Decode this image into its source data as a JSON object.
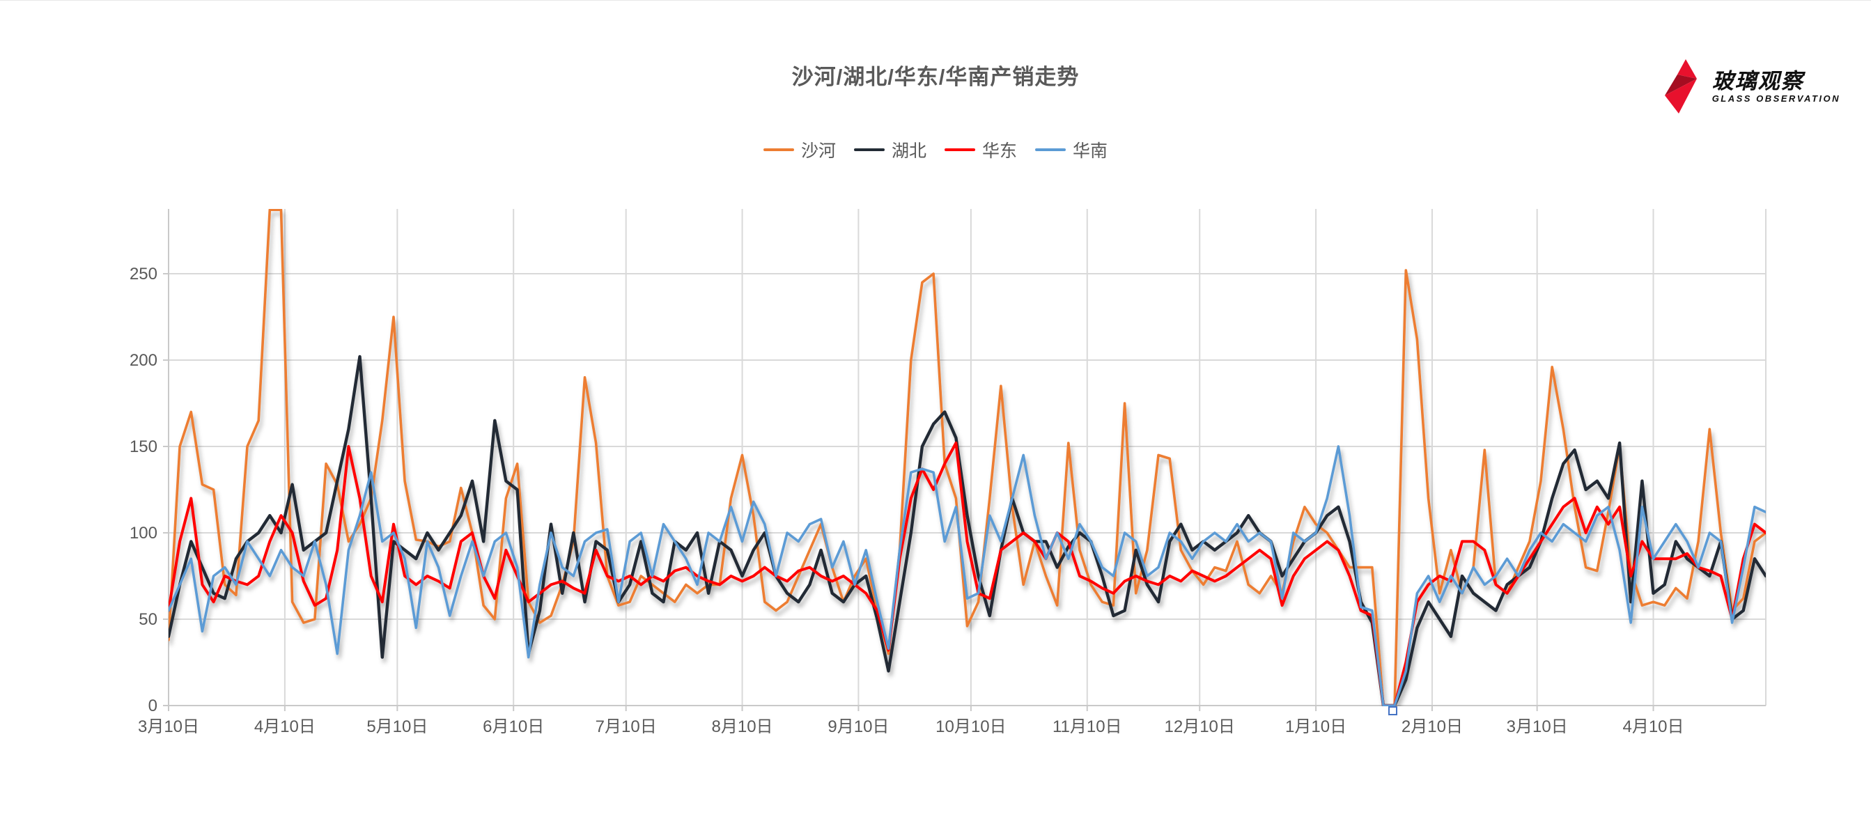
{
  "title": "沙河/湖北/华东/华南产销走势",
  "logo": {
    "name_cn": "玻璃观察",
    "name_en": "GLASS OBSERVATION",
    "star_color": "#e8112d",
    "star_dark": "#a50d21"
  },
  "axis_marker": {
    "color": "#4472c4"
  },
  "colors": {
    "grid": "#d9d9d9",
    "axis": "#c9c9c9",
    "tick_text": "#595959",
    "title_text": "#595959"
  },
  "chart_data": {
    "type": "line",
    "title": "沙河/湖北/华东/华南产销走势",
    "xlabel": "",
    "ylabel": "",
    "ylim": [
      0,
      287
    ],
    "yticks": [
      0,
      50,
      100,
      150,
      200,
      250
    ],
    "grid": true,
    "legend_position": "top",
    "x_unit": "days since first tick (3月10日), values sampled every 3 days",
    "x_step_days": 3,
    "x_total_days": 426,
    "x_tick_days": [
      0,
      31,
      61,
      92,
      122,
      153,
      184,
      214,
      245,
      275,
      306,
      337,
      365,
      396
    ],
    "x_tick_labels": [
      "3月10日",
      "4月10日",
      "5月10日",
      "6月10日",
      "7月10日",
      "8月10日",
      "9月10日",
      "10月10日",
      "11月10日",
      "12月10日",
      "1月10日",
      "2月10日",
      "3月10日",
      "4月10日"
    ],
    "series": [
      {
        "name": "沙河",
        "color": "#ED7D31",
        "width": 3.6,
        "values": [
          38,
          150,
          170,
          128,
          125,
          70,
          64,
          150,
          165,
          287,
          288,
          60,
          48,
          50,
          140,
          128,
          95,
          105,
          120,
          165,
          225,
          130,
          96,
          95,
          92,
          95,
          126,
          100,
          58,
          50,
          120,
          140,
          60,
          48,
          52,
          70,
          95,
          190,
          152,
          75,
          58,
          60,
          75,
          70,
          65,
          60,
          70,
          65,
          70,
          70,
          120,
          145,
          110,
          60,
          55,
          60,
          75,
          90,
          105,
          80,
          60,
          75,
          85,
          55,
          30,
          90,
          200,
          245,
          250,
          140,
          120,
          46,
          60,
          120,
          185,
          115,
          70,
          95,
          75,
          58,
          152,
          90,
          70,
          60,
          58,
          175,
          65,
          90,
          145,
          143,
          90,
          78,
          70,
          80,
          78,
          95,
          70,
          65,
          75,
          65,
          95,
          115,
          105,
          100,
          90,
          80,
          80,
          80,
          0,
          0,
          252,
          212,
          120,
          65,
          90,
          65,
          80,
          148,
          70,
          65,
          80,
          95,
          130,
          196,
          160,
          115,
          80,
          78,
          112,
          150,
          78,
          58,
          60,
          58,
          68,
          62,
          95,
          160,
          100,
          55,
          62,
          95,
          100
        ]
      },
      {
        "name": "湖北",
        "color": "#222B35",
        "width": 4.4,
        "values": [
          40,
          70,
          95,
          80,
          65,
          62,
          85,
          95,
          100,
          110,
          100,
          128,
          90,
          95,
          100,
          130,
          160,
          202,
          120,
          28,
          95,
          90,
          85,
          100,
          90,
          100,
          110,
          130,
          95,
          165,
          130,
          125,
          30,
          55,
          105,
          65,
          100,
          60,
          95,
          90,
          60,
          70,
          95,
          65,
          60,
          95,
          90,
          100,
          65,
          95,
          90,
          75,
          90,
          100,
          75,
          65,
          60,
          70,
          90,
          65,
          60,
          70,
          75,
          50,
          20,
          60,
          100,
          150,
          163,
          170,
          155,
          110,
          75,
          52,
          90,
          120,
          100,
          95,
          95,
          80,
          92,
          100,
          95,
          75,
          52,
          55,
          90,
          70,
          60,
          95,
          105,
          90,
          95,
          90,
          95,
          100,
          110,
          100,
          95,
          75,
          85,
          95,
          100,
          110,
          115,
          95,
          60,
          48,
          0,
          0,
          15,
          45,
          60,
          50,
          40,
          75,
          65,
          60,
          55,
          70,
          75,
          80,
          95,
          120,
          140,
          148,
          125,
          130,
          120,
          152,
          60,
          130,
          65,
          70,
          95,
          85,
          80,
          75,
          95,
          50,
          55,
          85,
          75
        ]
      },
      {
        "name": "华东",
        "color": "#FF0000",
        "width": 4.0,
        "values": [
          55,
          95,
          120,
          70,
          60,
          75,
          72,
          70,
          75,
          95,
          110,
          100,
          72,
          58,
          62,
          90,
          150,
          120,
          75,
          60,
          105,
          75,
          70,
          75,
          72,
          68,
          95,
          100,
          75,
          62,
          90,
          75,
          60,
          65,
          70,
          72,
          68,
          65,
          90,
          75,
          72,
          75,
          70,
          75,
          72,
          78,
          80,
          75,
          72,
          70,
          75,
          72,
          75,
          80,
          75,
          72,
          78,
          80,
          75,
          72,
          75,
          70,
          65,
          55,
          32,
          85,
          120,
          137,
          125,
          140,
          152,
          95,
          65,
          62,
          90,
          95,
          100,
          95,
          85,
          100,
          95,
          75,
          72,
          68,
          65,
          72,
          75,
          72,
          70,
          75,
          72,
          78,
          75,
          72,
          75,
          80,
          85,
          90,
          85,
          58,
          75,
          85,
          90,
          95,
          90,
          75,
          55,
          52,
          0,
          0,
          25,
          60,
          70,
          75,
          72,
          95,
          95,
          90,
          70,
          65,
          75,
          85,
          95,
          105,
          115,
          120,
          100,
          115,
          105,
          115,
          75,
          95,
          85,
          85,
          85,
          88,
          80,
          78,
          75,
          50,
          85,
          105,
          100
        ]
      },
      {
        "name": "华南",
        "color": "#5B9BD5",
        "width": 3.6,
        "values": [
          55,
          70,
          85,
          43,
          75,
          80,
          70,
          95,
          85,
          75,
          90,
          80,
          75,
          95,
          70,
          30,
          90,
          110,
          135,
          95,
          100,
          85,
          45,
          95,
          80,
          52,
          75,
          95,
          75,
          95,
          100,
          80,
          28,
          70,
          100,
          80,
          75,
          95,
          100,
          102,
          60,
          95,
          100,
          75,
          105,
          95,
          85,
          70,
          100,
          95,
          115,
          95,
          118,
          105,
          75,
          100,
          95,
          105,
          108,
          80,
          95,
          70,
          90,
          60,
          33,
          90,
          135,
          137,
          135,
          95,
          115,
          62,
          65,
          110,
          95,
          120,
          145,
          110,
          85,
          100,
          85,
          105,
          95,
          80,
          75,
          100,
          95,
          75,
          80,
          100,
          95,
          85,
          95,
          100,
          95,
          105,
          95,
          100,
          95,
          62,
          100,
          95,
          100,
          120,
          150,
          110,
          57,
          55,
          0,
          0,
          20,
          65,
          75,
          60,
          75,
          65,
          80,
          70,
          75,
          85,
          75,
          90,
          100,
          95,
          105,
          100,
          95,
          110,
          115,
          90,
          48,
          115,
          85,
          95,
          105,
          95,
          80,
          100,
          95,
          48,
          80,
          115,
          112
        ]
      }
    ]
  }
}
